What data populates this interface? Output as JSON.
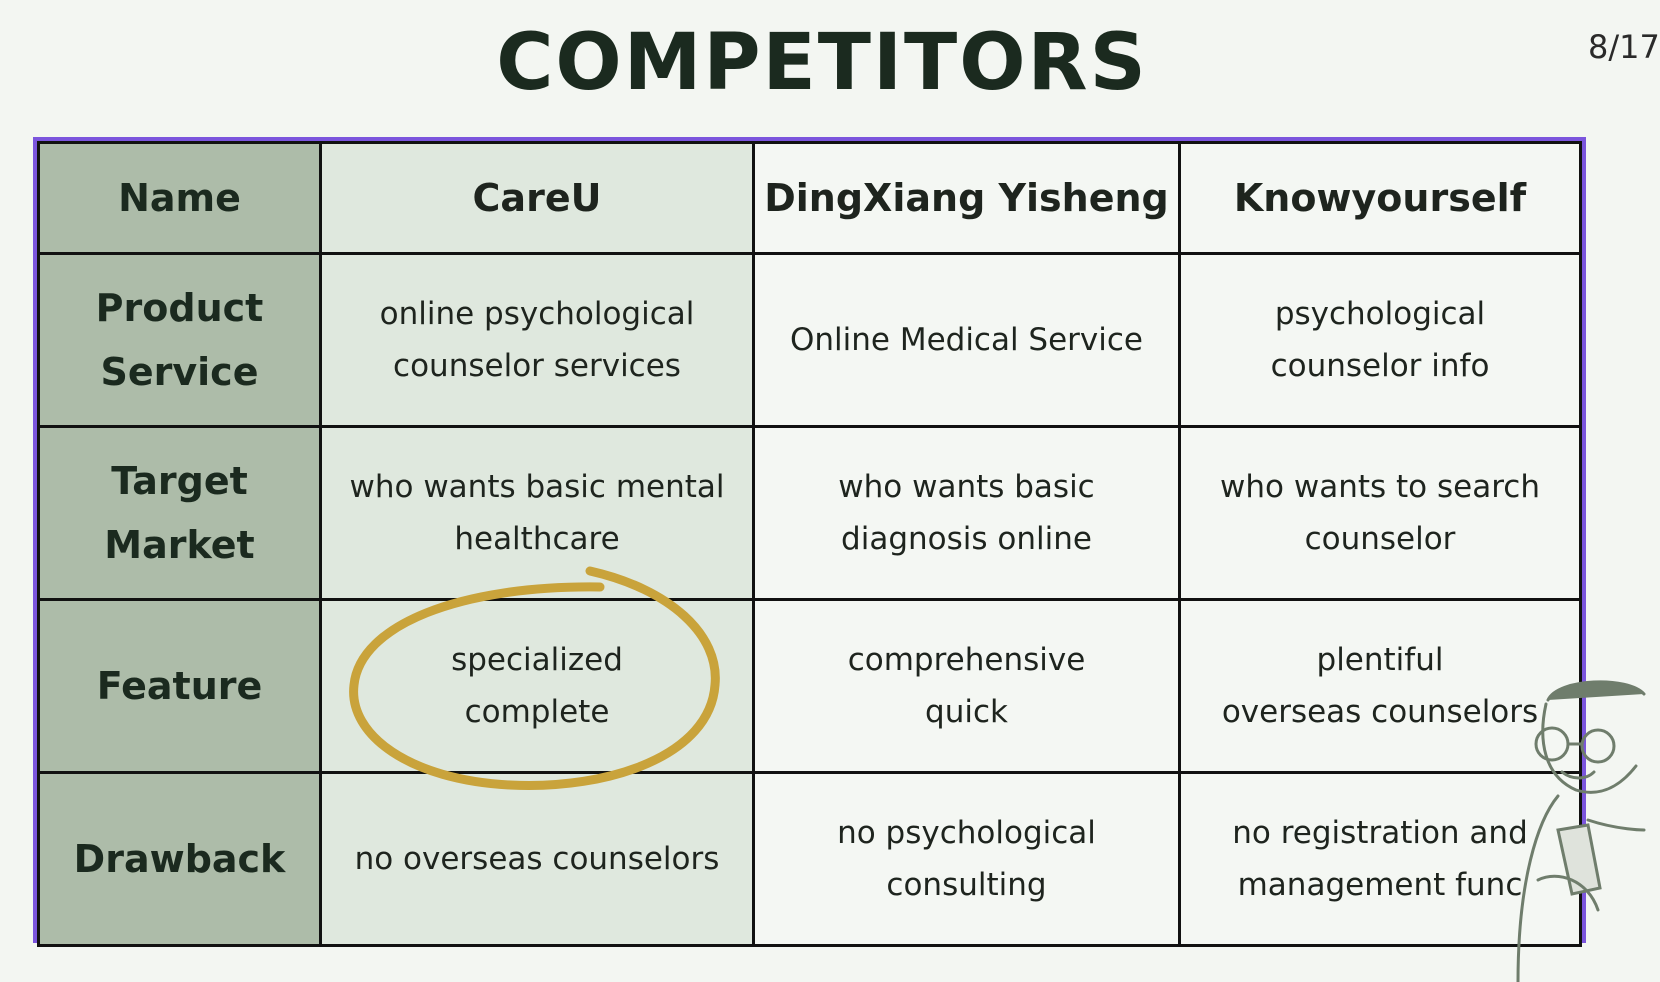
{
  "slide": {
    "title": "COMPETITORS",
    "page_number": "8/17"
  },
  "table": {
    "columns": [
      "Name",
      "CareU",
      "DingXiang Yisheng",
      "Knowyourself"
    ],
    "rows": [
      {
        "label": "Product\nService",
        "cells": [
          "online psychological\ncounselor services",
          "Online Medical Service",
          "psychological\ncounselor info"
        ]
      },
      {
        "label": "Target\nMarket",
        "cells": [
          "who wants  basic mental\nhealthcare",
          "who wants basic\ndiagnosis online",
          "who wants to search\ncounselor"
        ]
      },
      {
        "label": "Feature",
        "cells": [
          "specialized\ncomplete",
          "comprehensive\nquick",
          "plentiful\noverseas counselors"
        ]
      },
      {
        "label": "Drawback",
        "cells": [
          "no overseas counselors",
          "no psychological\nconsulting",
          "no registration and\nmanagement func"
        ]
      }
    ]
  },
  "colors": {
    "rowhead_bg": "#adbca9",
    "careu_bg": "#dfe8de",
    "other_bg": "#f4f7f3",
    "border_accent": "#7b55dd",
    "highlight_circle": "#c9a33b"
  },
  "decorations": {
    "highlight": "hand-drawn-circle",
    "illustration": "person-with-glasses-holding-phone"
  }
}
